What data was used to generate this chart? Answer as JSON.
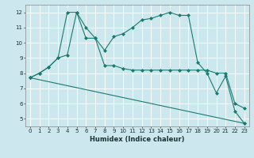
{
  "xlabel": "Humidex (Indice chaleur)",
  "bg_color": "#cce8ee",
  "grid_color": "#ffffff",
  "line_color": "#1a7a6e",
  "xlim": [
    -0.5,
    23.5
  ],
  "ylim": [
    4.5,
    12.5
  ],
  "xticks": [
    0,
    1,
    2,
    3,
    4,
    5,
    6,
    7,
    8,
    9,
    10,
    11,
    12,
    13,
    14,
    15,
    16,
    17,
    18,
    19,
    20,
    21,
    22,
    23
  ],
  "yticks": [
    5,
    6,
    7,
    8,
    9,
    10,
    11,
    12
  ],
  "series1_x": [
    0,
    1,
    2,
    3,
    4,
    5,
    6,
    7,
    8,
    9,
    10,
    11,
    12,
    13,
    14,
    15,
    16,
    17,
    18,
    19,
    20,
    21,
    22,
    23
  ],
  "series1_y": [
    7.7,
    8.0,
    8.4,
    9.0,
    9.2,
    12.0,
    11.0,
    10.3,
    9.5,
    10.4,
    10.6,
    11.0,
    11.5,
    11.6,
    11.8,
    12.0,
    11.8,
    11.8,
    8.7,
    8.0,
    6.7,
    7.8,
    5.5,
    4.7
  ],
  "series2_x": [
    0,
    1,
    2,
    3,
    4,
    5,
    6,
    7,
    8,
    9,
    10,
    11,
    12,
    13,
    14,
    15,
    16,
    17,
    18,
    19,
    20,
    21,
    22,
    23
  ],
  "series2_y": [
    7.7,
    8.0,
    8.4,
    9.0,
    12.0,
    12.0,
    10.3,
    10.3,
    8.5,
    8.5,
    8.3,
    8.2,
    8.2,
    8.2,
    8.2,
    8.2,
    8.2,
    8.2,
    8.2,
    8.2,
    8.0,
    8.0,
    6.0,
    5.7
  ],
  "series3_x": [
    0,
    23
  ],
  "series3_y": [
    7.7,
    4.7
  ],
  "xlabel_fontsize": 6,
  "tick_fontsize": 5,
  "marker_size": 2.5,
  "linewidth": 0.8
}
